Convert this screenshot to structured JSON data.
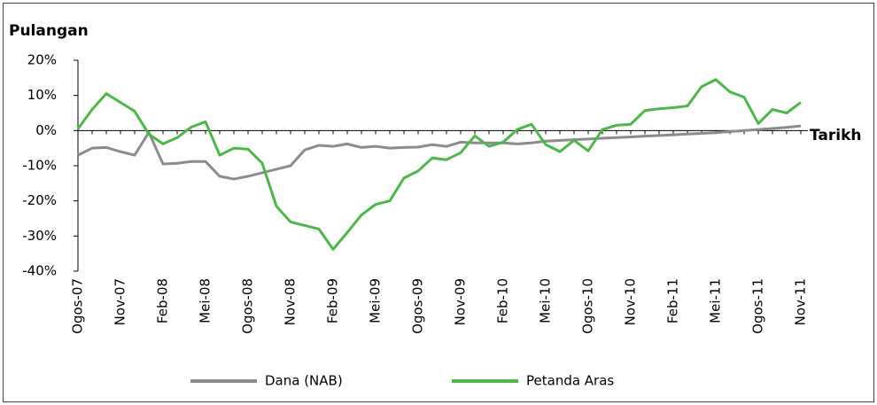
{
  "chart_data": {
    "type": "line",
    "title": "Pulangan",
    "x_label": "Tarikh",
    "categories": [
      "Ogos-07",
      null,
      null,
      "Nov-07",
      null,
      null,
      "Feb-08",
      null,
      null,
      "Mei-08",
      null,
      null,
      "Ogos-08",
      null,
      null,
      "Nov-08",
      null,
      null,
      "Feb-09",
      null,
      null,
      "Mei-09",
      null,
      null,
      "Ogos-09",
      null,
      null,
      "Nov-09",
      null,
      null,
      "Feb-10",
      null,
      null,
      "Mei-10",
      null,
      null,
      "Ogos-10",
      null,
      null,
      "Nov-10",
      null,
      null,
      "Feb-11",
      null,
      null,
      "Mei-11",
      null,
      null,
      "Ogos-11",
      null,
      null,
      "Nov-11"
    ],
    "series": [
      {
        "name": "Dana (NAB)",
        "color": "#8c8c8c",
        "values": [
          -7,
          -5,
          -4.8,
          -6,
          -7,
          -0.5,
          -9.5,
          -9.3,
          -8.8,
          -8.8,
          -13,
          -13.8,
          -13,
          -12,
          -11,
          -10,
          -5.5,
          -4.2,
          -4.5,
          -3.8,
          -4.8,
          -4.5,
          -5,
          -4.8,
          -4.7,
          -4,
          -4.5,
          -3.3,
          -3.5,
          -3.5,
          -3.5,
          -3.8,
          -3.5,
          -3,
          -2.8,
          -2.6,
          -2.4,
          -2.2,
          -2,
          -1.8,
          -1.6,
          -1.4,
          -1.2,
          -1,
          -0.8,
          -0.6,
          -0.3,
          0,
          0.3,
          0.6,
          0.9,
          1.3
        ]
      },
      {
        "name": "Petanda Aras",
        "color": "#4cb848",
        "values": [
          0.5,
          6,
          10.5,
          8,
          5.5,
          -1,
          -3.8,
          -2,
          1,
          2.5,
          -7,
          -5,
          -5.3,
          -9.3,
          -21.5,
          -26,
          -27,
          -28,
          -33.8,
          -29,
          -24,
          -21,
          -20,
          -13.5,
          -11.5,
          -7.8,
          -8.3,
          -6.3,
          -1.5,
          -4.5,
          -3.3,
          0.3,
          1.8,
          -4,
          -6,
          -2.8,
          -5.8,
          0.3,
          1.5,
          1.8,
          5.7,
          6.2,
          6.5,
          7,
          12.5,
          14.5,
          11,
          9.5,
          2,
          6,
          5,
          8
        ]
      }
    ],
    "ylim": [
      -40,
      20
    ],
    "yticks": [
      {
        "value": -40,
        "label": "-40%"
      },
      {
        "value": -30,
        "label": "-30%"
      },
      {
        "value": -20,
        "label": "-20%"
      },
      {
        "value": -10,
        "label": "-10%"
      },
      {
        "value": 0,
        "label": "0%"
      },
      {
        "value": 10,
        "label": "10%"
      },
      {
        "value": 20,
        "label": "20%"
      }
    ]
  }
}
